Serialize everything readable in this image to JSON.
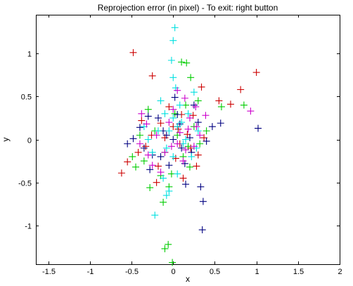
{
  "chart_data": {
    "type": "scatter",
    "title": "Reprojection error (in pixel) - To exit: right button",
    "xlabel": "x",
    "ylabel": "y",
    "xlim": [
      -1.65,
      2.0
    ],
    "ylim": [
      -1.45,
      1.45
    ],
    "xticks": [
      -1.5,
      -1,
      -0.5,
      0,
      0.5,
      1,
      1.5,
      2
    ],
    "xtick_labels": [
      "-1.5",
      "-1",
      "-0.5",
      "0",
      "0.5",
      "1",
      "1.5",
      "2"
    ],
    "yticks": [
      -1,
      -0.5,
      0,
      0.5,
      1
    ],
    "ytick_labels": [
      "-1",
      "-0.5",
      "0",
      "0.5",
      "1"
    ],
    "grid": false,
    "marker": "plus",
    "series": [
      {
        "color": "#cc0000",
        "points": [
          [
            -0.48,
            1.01
          ],
          [
            -0.25,
            0.74
          ],
          [
            0.34,
            0.61
          ],
          [
            0.81,
            0.58
          ],
          [
            1.0,
            0.78
          ],
          [
            0.55,
            0.45
          ],
          [
            0.69,
            0.41
          ],
          [
            -0.62,
            -0.39
          ],
          [
            -0.55,
            -0.26
          ],
          [
            -0.33,
            -0.08
          ],
          [
            -0.15,
            0.19
          ],
          [
            0.06,
            0.12
          ],
          [
            0.21,
            -0.1
          ],
          [
            0.28,
            -0.31
          ],
          [
            0.12,
            -0.45
          ],
          [
            -0.18,
            -0.31
          ],
          [
            -0.05,
            0.38
          ],
          [
            0.1,
            0.29
          ],
          [
            -0.26,
            0.05
          ],
          [
            -0.38,
            0.22
          ],
          [
            0.37,
            0.02
          ],
          [
            0.03,
            -0.22
          ],
          [
            -0.1,
            0.02
          ],
          [
            0.17,
            0.06
          ],
          [
            -0.42,
            -0.15
          ],
          [
            0.24,
            0.28
          ],
          [
            -0.2,
            -0.5
          ],
          [
            0.08,
            -0.05
          ],
          [
            0.0,
            0.15
          ],
          [
            0.3,
            -0.18
          ]
        ]
      },
      {
        "color": "#00cc00",
        "points": [
          [
            0.1,
            0.9
          ],
          [
            0.16,
            0.89
          ],
          [
            0.21,
            0.72
          ],
          [
            0.58,
            0.38
          ],
          [
            0.85,
            0.4
          ],
          [
            -0.06,
            -1.22
          ],
          [
            -0.1,
            -1.27
          ],
          [
            -0.01,
            -1.43
          ],
          [
            -0.12,
            -0.73
          ],
          [
            -0.28,
            -0.56
          ],
          [
            -0.49,
            -0.2
          ],
          [
            -0.45,
            -0.32
          ],
          [
            -0.35,
            -0.25
          ],
          [
            -0.02,
            -0.4
          ],
          [
            0.2,
            -0.32
          ],
          [
            0.3,
            0.45
          ],
          [
            0.4,
            0.1
          ],
          [
            -0.3,
            0.35
          ],
          [
            0.15,
            0.4
          ],
          [
            -0.1,
            -0.15
          ],
          [
            0.05,
            0.05
          ],
          [
            -0.22,
            0.1
          ],
          [
            0.12,
            -0.2
          ],
          [
            0.25,
            0.15
          ],
          [
            -0.15,
            -0.42
          ],
          [
            0.02,
            0.3
          ],
          [
            -0.05,
            -0.55
          ],
          [
            0.32,
            -0.05
          ],
          [
            -0.4,
            0.05
          ],
          [
            0.18,
            -0.08
          ]
        ]
      },
      {
        "color": "#000080",
        "points": [
          [
            0.02,
            0.49
          ],
          [
            0.05,
            0.29
          ],
          [
            0.25,
            0.4
          ],
          [
            0.57,
            0.19
          ],
          [
            0.47,
            0.15
          ],
          [
            1.02,
            0.13
          ],
          [
            0.36,
            -0.72
          ],
          [
            0.35,
            -1.05
          ],
          [
            0.33,
            -0.55
          ],
          [
            0.15,
            -0.52
          ],
          [
            -0.3,
            0.27
          ],
          [
            -0.4,
            0.14
          ],
          [
            -0.55,
            -0.05
          ],
          [
            -0.48,
            0.01
          ],
          [
            -0.25,
            -0.18
          ],
          [
            0.1,
            -0.1
          ],
          [
            -0.12,
            0.1
          ],
          [
            0.2,
            0.02
          ],
          [
            -0.05,
            -0.3
          ],
          [
            0.3,
            0.2
          ],
          [
            -0.18,
            0.25
          ],
          [
            0.08,
            0.18
          ],
          [
            -0.35,
            -0.1
          ],
          [
            0.4,
            -0.02
          ],
          [
            -0.08,
            0.05
          ],
          [
            0.14,
            -0.28
          ],
          [
            -0.28,
            -0.35
          ],
          [
            0.22,
            -0.15
          ],
          [
            0.0,
            0.0
          ],
          [
            -0.15,
            -0.2
          ]
        ]
      },
      {
        "color": "#00e0e0",
        "points": [
          [
            0.02,
            1.3
          ],
          [
            0.0,
            1.15
          ],
          [
            -0.02,
            0.92
          ],
          [
            0.0,
            0.72
          ],
          [
            0.03,
            0.6
          ],
          [
            -0.22,
            -0.88
          ],
          [
            -0.08,
            -0.65
          ],
          [
            -0.05,
            -0.6
          ],
          [
            0.1,
            0.2
          ],
          [
            -0.1,
            0.3
          ],
          [
            0.25,
            0.55
          ],
          [
            -0.3,
            0.0
          ],
          [
            0.05,
            -0.4
          ],
          [
            -0.15,
            0.45
          ],
          [
            0.3,
            0.1
          ],
          [
            -0.05,
            0.1
          ],
          [
            0.12,
            -0.05
          ],
          [
            -0.25,
            -0.15
          ],
          [
            0.18,
            0.3
          ],
          [
            0.0,
            -0.2
          ],
          [
            -0.18,
            0.1
          ],
          [
            0.08,
            0.4
          ],
          [
            0.22,
            -0.2
          ],
          [
            -0.35,
            0.15
          ],
          [
            0.15,
            0.0
          ],
          [
            -0.08,
            -0.1
          ],
          [
            0.0,
            0.25
          ],
          [
            0.28,
            -0.1
          ],
          [
            -0.12,
            -0.45
          ],
          [
            0.05,
            0.15
          ]
        ]
      },
      {
        "color": "#cc00cc",
        "points": [
          [
            0.05,
            0.57
          ],
          [
            0.14,
            0.48
          ],
          [
            0.27,
            0.38
          ],
          [
            0.93,
            0.33
          ],
          [
            0.39,
            0.28
          ],
          [
            -0.38,
            0.3
          ],
          [
            -0.32,
            0.18
          ],
          [
            -0.2,
            0.05
          ],
          [
            0.05,
            -0.05
          ],
          [
            0.18,
            0.12
          ],
          [
            -0.1,
            -0.15
          ],
          [
            0.25,
            -0.08
          ],
          [
            -0.25,
            -0.3
          ],
          [
            0.12,
            -0.25
          ],
          [
            -0.05,
            0.2
          ],
          [
            0.32,
            0.05
          ],
          [
            -0.4,
            -0.05
          ],
          [
            0.0,
            0.35
          ],
          [
            -0.15,
            -0.38
          ],
          [
            0.2,
            0.25
          ],
          [
            0.08,
            0.08
          ],
          [
            -0.3,
            -0.18
          ],
          [
            0.15,
            -0.12
          ],
          [
            -0.02,
            -0.08
          ],
          [
            0.28,
            0.15
          ]
        ]
      }
    ]
  }
}
